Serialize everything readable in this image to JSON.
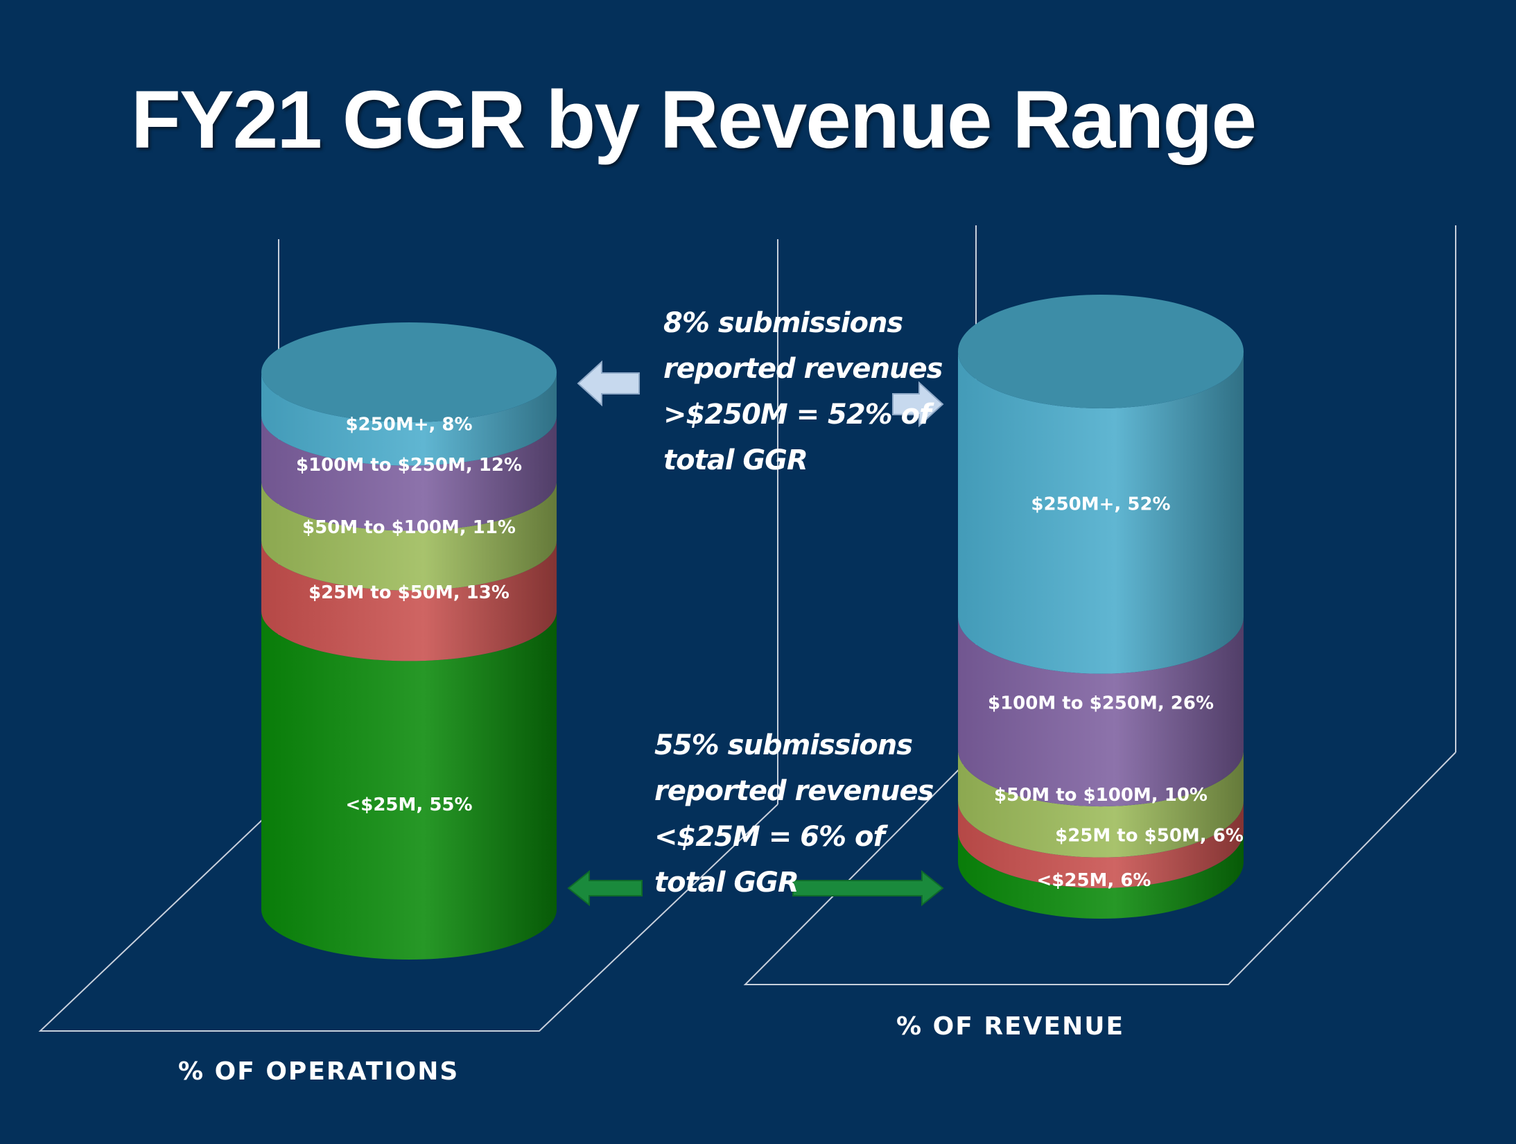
{
  "slide": {
    "title": "FY21 GGR by Revenue Range"
  },
  "annotations": {
    "top": [
      "8% submissions",
      "reported revenues",
      ">$250M = 52% of",
      "total GGR"
    ],
    "bottom": [
      "55% submissions",
      "reported revenues",
      "<$25M = 6% of",
      "total GGR"
    ]
  },
  "chart_data": {
    "type": "bar",
    "stacked": true,
    "style": "3d-cylinder",
    "categories": [
      "% OF OPERATIONS",
      "% OF REVENUE"
    ],
    "series": [
      {
        "name": "<$25M",
        "color": "#0a8a0a",
        "values": [
          55,
          6
        ],
        "labels": [
          "<$25M, 55%",
          "<$25M, 6%"
        ]
      },
      {
        "name": "$25M to $50M",
        "color": "#c9504e",
        "values": [
          13,
          6
        ],
        "labels": [
          "$25M to $50M, 13%",
          "$25M to $50M, 6%"
        ]
      },
      {
        "name": "$50M to $100M",
        "color": "#9cbb59",
        "values": [
          11,
          10
        ],
        "labels": [
          "$50M to $100M, 11%",
          "$50M to $100M, 10%"
        ]
      },
      {
        "name": "$100M to $250M",
        "color": "#7d60a0",
        "values": [
          12,
          26
        ],
        "labels": [
          "$100M to $250M, 12%",
          "$100M to $250M, 26%"
        ]
      },
      {
        "name": "$250M+",
        "color": "#4aaccc",
        "values": [
          8,
          52
        ],
        "labels": [
          "$250M+, 8%",
          "$250M+, 52%"
        ]
      }
    ],
    "ylim": [
      0,
      100
    ],
    "grid": false,
    "legend": "none"
  }
}
